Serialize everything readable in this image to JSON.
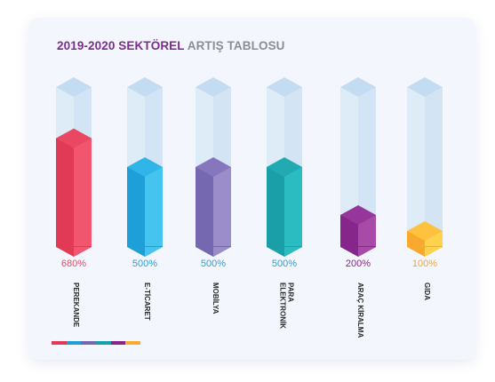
{
  "title": {
    "part1": "2019-2020 SEKTÖREL",
    "part2": "ARTIŞ TABLOSU"
  },
  "colors": {
    "title_accent": "#7b2d8e",
    "title_muted": "#8a8d97",
    "glass_front": "#dbeaf7",
    "glass_side": "#cfe2f4",
    "glass_top": "#c3dcf1"
  },
  "chart_data": {
    "type": "bar",
    "title": "2019-2020 SEKTÖREL ARTIŞ TABLOSU",
    "ylim": [
      0,
      1000
    ],
    "unit": "%",
    "categories": [
      {
        "label": [
          "PEREKANDE"
        ],
        "value": 680,
        "value_label": "680%",
        "front": "#e13a56",
        "side": "#f2566f",
        "top": "#ea4862",
        "text": "#e84a63"
      },
      {
        "label": [
          "E-TİCARET"
        ],
        "value": 500,
        "value_label": "500%",
        "front": "#1e9fd8",
        "side": "#44c4ef",
        "top": "#2fb5e8",
        "text": "#2a9fd6"
      },
      {
        "label": [
          "MOBİLYA"
        ],
        "value": 500,
        "value_label": "500%",
        "front": "#7668b0",
        "side": "#9a8dca",
        "top": "#8576bd",
        "text": "#2a9fd6"
      },
      {
        "label": [
          "ELEKTRONİK",
          "PARA"
        ],
        "value": 500,
        "value_label": "500%",
        "front": "#1a9fa9",
        "side": "#2bbcc2",
        "top": "#22aab3",
        "text": "#2a9fd6"
      },
      {
        "label": [
          "ARAÇ KİRALMA"
        ],
        "value": 200,
        "value_label": "200%",
        "front": "#86268a",
        "side": "#a84aa8",
        "top": "#96359a",
        "text": "#86268a"
      },
      {
        "label": [
          "GIDA"
        ],
        "value": 100,
        "value_label": "100%",
        "front": "#f9a92e",
        "side": "#ffd24d",
        "top": "#ffc23e",
        "text": "#f5a623"
      }
    ]
  },
  "stripe_colors": [
    "#e13a56",
    "#1e9fd8",
    "#7668b0",
    "#1a9fa9",
    "#86268a",
    "#f9a92e"
  ]
}
